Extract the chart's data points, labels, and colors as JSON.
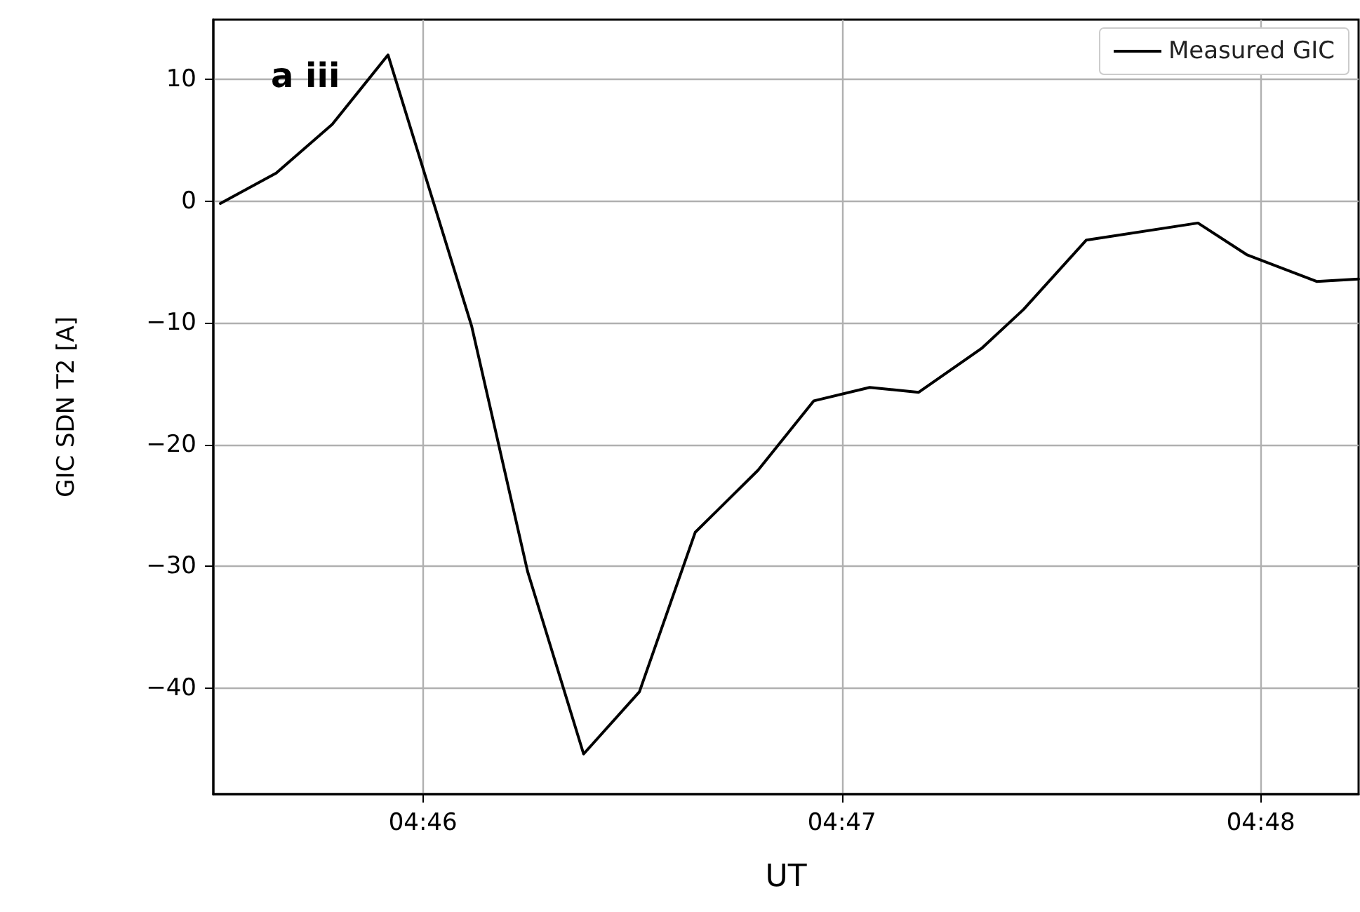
{
  "chart_data": {
    "type": "line",
    "xlabel": "UT",
    "ylabel": "GIC SDN T2 [A]",
    "annotations": [
      "a iii"
    ],
    "x": [
      4.75861,
      4.76083,
      4.76306,
      4.76528,
      4.76861,
      4.77083,
      4.77306,
      4.77528,
      4.7775,
      4.78,
      4.78222,
      4.78444,
      4.78639,
      4.78889,
      4.79056,
      4.79306,
      4.7975,
      4.79944,
      4.80222,
      4.80389
    ],
    "series": [
      {
        "name": "Measured GIC",
        "color": "#000000",
        "values": [
          -0.2,
          2.3,
          6.3,
          12.0,
          -10.3,
          -30.4,
          -45.4,
          -40.3,
          -27.2,
          -22.1,
          -16.4,
          -15.3,
          -15.7,
          -12.1,
          -8.9,
          -3.2,
          -1.8,
          -4.4,
          -6.6,
          -6.4
        ]
      }
    ],
    "xlim": [
      4.75833,
      4.80389
    ],
    "xticks": [
      {
        "value": 4.766667,
        "label": "04:46"
      },
      {
        "value": 4.783333,
        "label": "04:47"
      },
      {
        "value": 4.8,
        "label": "04:48"
      }
    ],
    "ylim": [
      -48.7,
      14.9
    ],
    "yticks": [
      -40,
      -30,
      -20,
      -10,
      0,
      10
    ],
    "grid": true,
    "legend": "top right",
    "line_style": "solid",
    "marker": "none"
  }
}
